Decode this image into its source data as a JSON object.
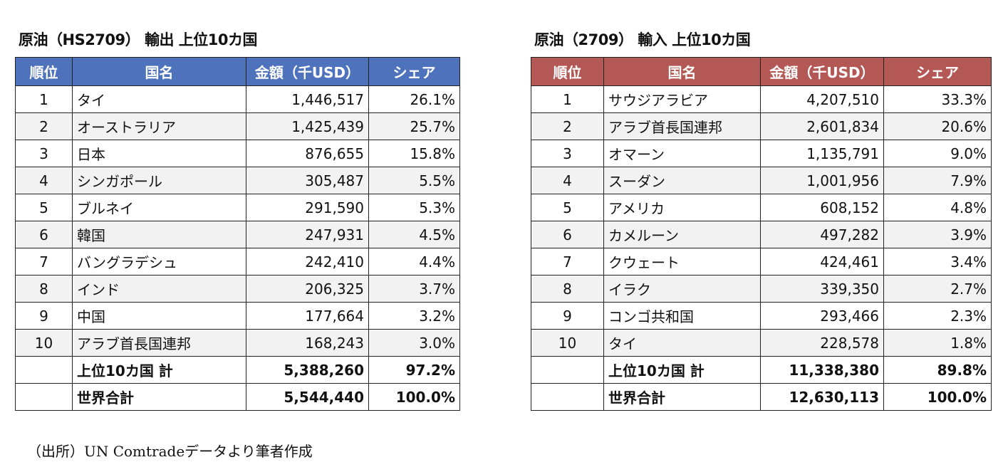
{
  "colors": {
    "export_header": "#4f72bd",
    "import_header": "#b35855"
  },
  "export": {
    "title": "原油（HS2709） 輸出 上位10カ国",
    "headers": [
      "順位",
      "国名",
      "金額（千USD）",
      "シェア"
    ],
    "rows": [
      [
        "1",
        "タイ",
        "1,446,517",
        "26.1%"
      ],
      [
        "2",
        "オーストラリア",
        "1,425,439",
        "25.7%"
      ],
      [
        "3",
        "日本",
        "876,655",
        "15.8%"
      ],
      [
        "4",
        "シンガポール",
        "305,487",
        "5.5%"
      ],
      [
        "5",
        "ブルネイ",
        "291,590",
        "5.3%"
      ],
      [
        "6",
        "韓国",
        "247,931",
        "4.5%"
      ],
      [
        "7",
        "バングラデシュ",
        "242,410",
        "4.4%"
      ],
      [
        "8",
        "インド",
        "206,325",
        "3.7%"
      ],
      [
        "9",
        "中国",
        "177,664",
        "3.2%"
      ],
      [
        "10",
        "アラブ首長国連邦",
        "168,243",
        "3.0%"
      ]
    ],
    "totals": [
      [
        "",
        "上位10カ国 計",
        "5,388,260",
        "97.2%"
      ],
      [
        "",
        "世界合計",
        "5,544,440",
        "100.0%"
      ]
    ]
  },
  "import": {
    "title": "原油（2709） 輸入 上位10カ国",
    "headers": [
      "順位",
      "国名",
      "金額（千USD）",
      "シェア"
    ],
    "rows": [
      [
        "1",
        "サウジアラビア",
        "4,207,510",
        "33.3%"
      ],
      [
        "2",
        "アラブ首長国連邦",
        "2,601,834",
        "20.6%"
      ],
      [
        "3",
        "オマーン",
        "1,135,791",
        "9.0%"
      ],
      [
        "4",
        "スーダン",
        "1,001,956",
        "7.9%"
      ],
      [
        "5",
        "アメリカ",
        "608,152",
        "4.8%"
      ],
      [
        "6",
        "カメルーン",
        "497,282",
        "3.9%"
      ],
      [
        "7",
        "クウェート",
        "424,461",
        "3.4%"
      ],
      [
        "8",
        "イラク",
        "339,350",
        "2.7%"
      ],
      [
        "9",
        "コンゴ共和国",
        "293,466",
        "2.3%"
      ],
      [
        "10",
        "タイ",
        "228,578",
        "1.8%"
      ]
    ],
    "totals": [
      [
        "",
        "上位10カ国 計",
        "11,338,380",
        "89.8%"
      ],
      [
        "",
        "世界合計",
        "12,630,113",
        "100.0%"
      ]
    ]
  },
  "source": "（出所）UN Comtradeデータより筆者作成"
}
